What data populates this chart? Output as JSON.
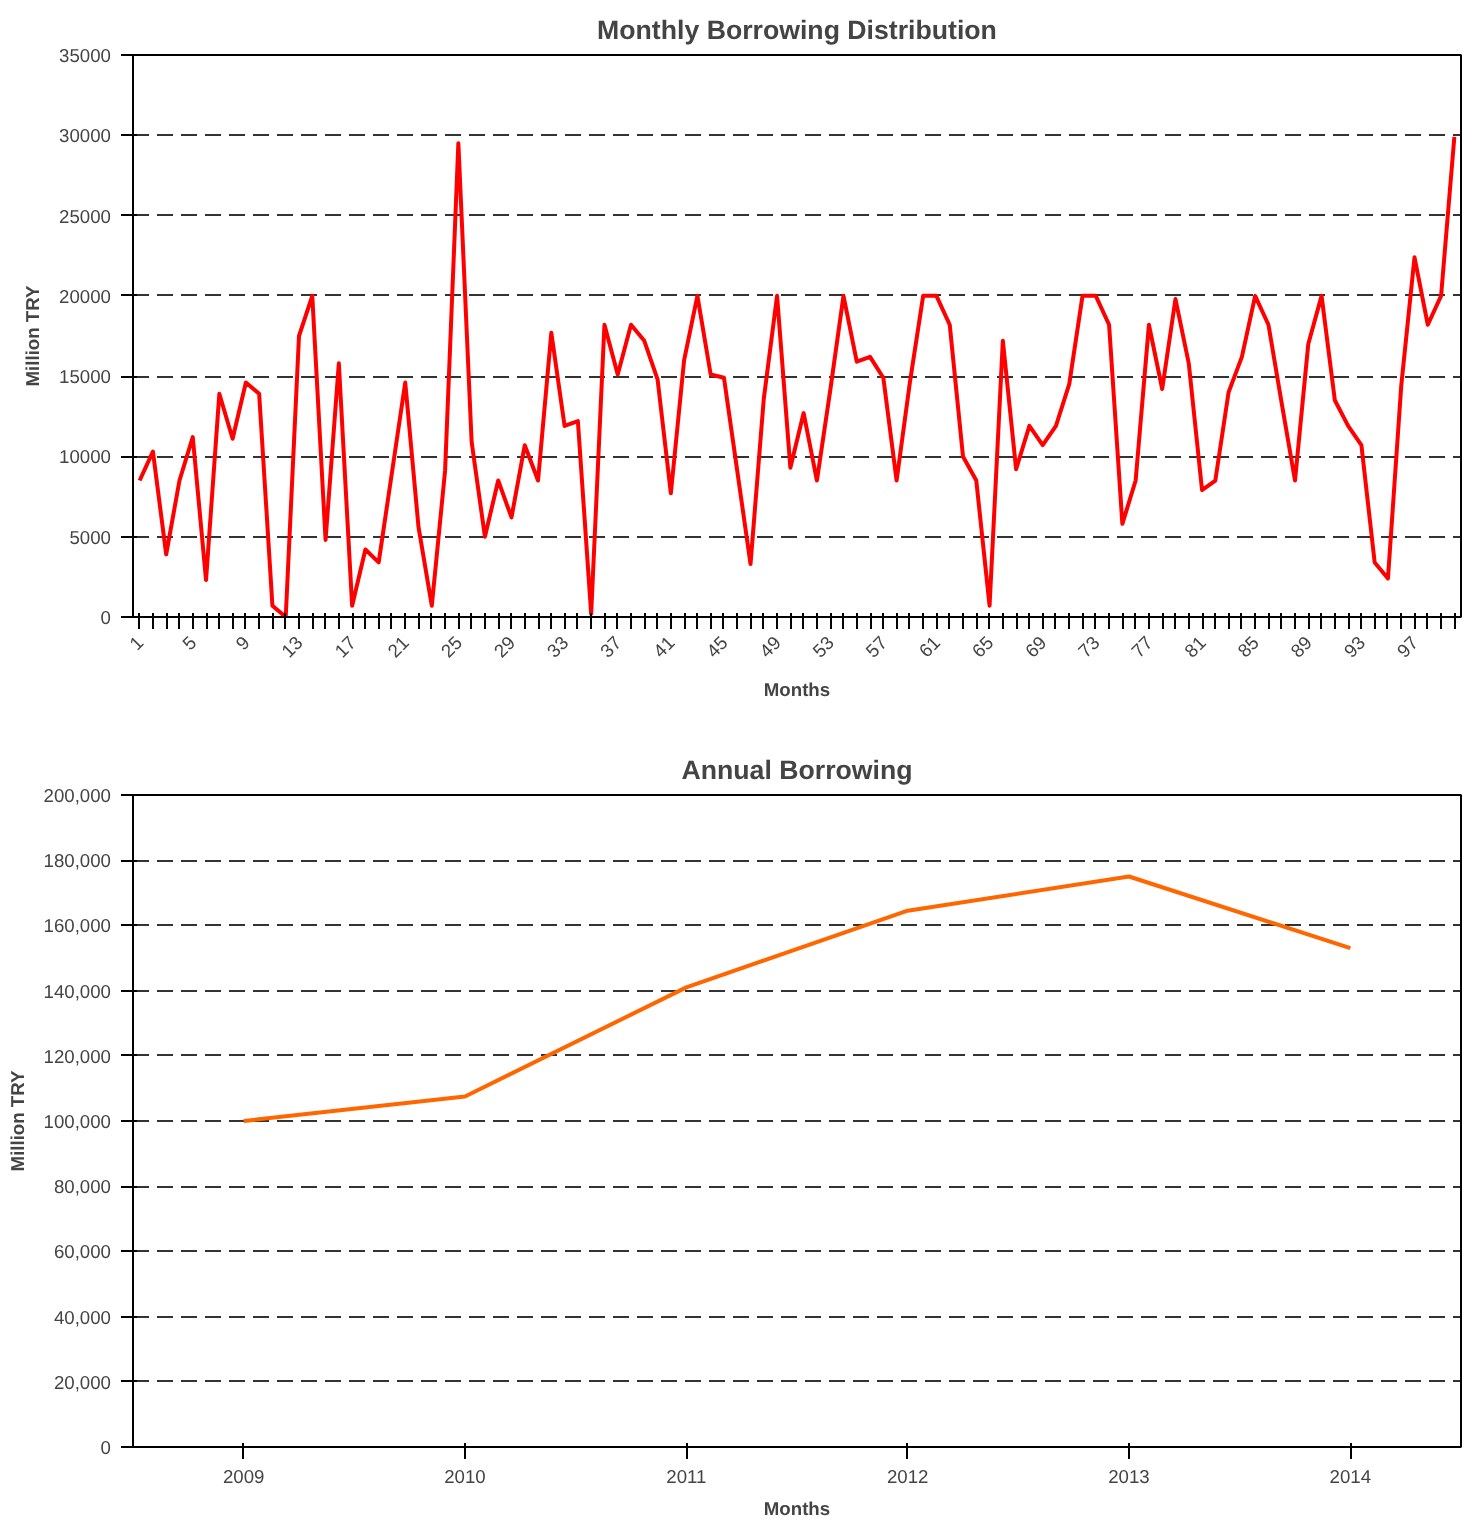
{
  "chart_data": [
    {
      "type": "line",
      "title": "Monthly Borrowing Distribution",
      "xlabel": "Months",
      "ylabel": "Million TRY",
      "categories": [
        "1",
        null,
        null,
        null,
        "5",
        null,
        null,
        null,
        "9",
        null,
        null,
        null,
        "13",
        null,
        null,
        null,
        "17",
        null,
        null,
        null,
        "21",
        null,
        null,
        null,
        "25",
        null,
        null,
        null,
        "29",
        null,
        null,
        null,
        "33",
        null,
        null,
        null,
        "37",
        null,
        null,
        null,
        "41",
        null,
        null,
        null,
        "45",
        null,
        null,
        null,
        "49",
        null,
        null,
        null,
        "53",
        null,
        null,
        null,
        "57",
        null,
        null,
        null,
        "61",
        null,
        null,
        null,
        "65",
        null,
        null,
        null,
        "69",
        null,
        null,
        null,
        "73",
        null,
        null,
        null,
        "77",
        null,
        null,
        null,
        "81",
        null,
        null,
        null,
        "85",
        null,
        null,
        null,
        "89",
        null,
        null,
        null,
        "93",
        null,
        null,
        null,
        "97",
        null,
        null,
        null
      ],
      "series": [
        {
          "color": "#ff0000",
          "values": [
            8500,
            10300,
            3900,
            8500,
            11200,
            2300,
            13900,
            11100,
            14600,
            13900,
            700,
            0,
            17500,
            20000,
            4800,
            15800,
            700,
            4200,
            3400,
            9000,
            14600,
            5600,
            700,
            9100,
            29500,
            10900,
            5000,
            8500,
            6200,
            10700,
            8500,
            17700,
            11900,
            12200,
            200,
            18200,
            15100,
            18200,
            17200,
            14800,
            7700,
            16000,
            20000,
            15100,
            14900,
            9100,
            3300,
            13600,
            20000,
            9300,
            12700,
            8500,
            14100,
            20000,
            15900,
            16200,
            14900,
            8500,
            14600,
            20000,
            20000,
            18200,
            10000,
            8500,
            700,
            17200,
            9200,
            11900,
            10700,
            11900,
            14500,
            20000,
            20000,
            18200,
            5800,
            8500,
            18200,
            14200,
            19800,
            15800,
            7900,
            8500,
            14000,
            16200,
            20000,
            18200,
            13300,
            8500,
            17000,
            20000,
            13500,
            11900,
            10700,
            3400,
            2400,
            14400,
            22400,
            18200,
            20000,
            29900
          ]
        }
      ],
      "ylim": [
        0,
        35000
      ],
      "yticks": [
        0,
        5000,
        10000,
        15000,
        20000,
        25000,
        30000,
        35000
      ],
      "grid": "y"
    },
    {
      "type": "line",
      "title": "Annual Borrowing",
      "xlabel": "Months",
      "ylabel": "Million TRY",
      "categories": [
        "2009",
        "2010",
        "2011",
        "2012",
        "2013",
        "2014"
      ],
      "series": [
        {
          "color": "#ff6600",
          "values": [
            100000,
            107500,
            141000,
            164500,
            175000,
            153000
          ]
        }
      ],
      "ylim": [
        0,
        200000
      ],
      "yticks": [
        {
          "value": 0,
          "label": "0"
        },
        {
          "value": 20000,
          "label": "20,000"
        },
        {
          "value": 40000,
          "label": "40,000"
        },
        {
          "value": 60000,
          "label": "60,000"
        },
        {
          "value": 80000,
          "label": "80,000"
        },
        {
          "value": 100000,
          "label": "100,000"
        },
        {
          "value": 120000,
          "label": "120,000"
        },
        {
          "value": 140000,
          "label": "140,000"
        },
        {
          "value": 160000,
          "label": "160,000"
        },
        {
          "value": 180000,
          "label": "180,000"
        },
        {
          "value": 200000,
          "label": "200,000"
        }
      ],
      "grid": "y"
    }
  ]
}
